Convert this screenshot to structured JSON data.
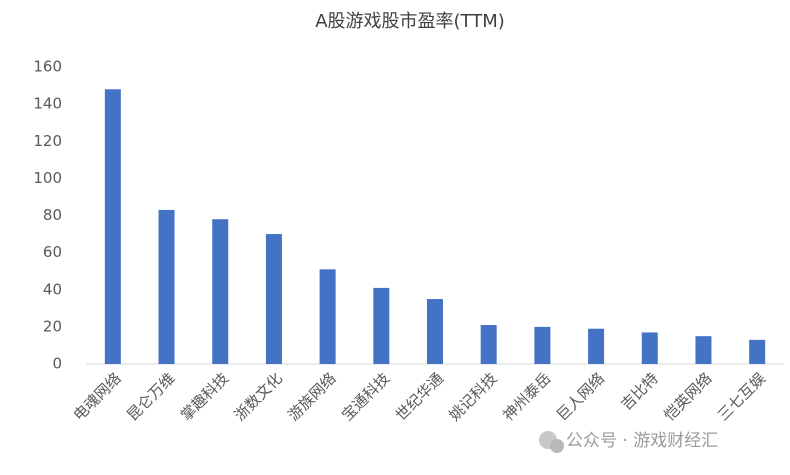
{
  "chart_data": {
    "type": "bar",
    "title": "A股游戏股市盈率(TTM)",
    "categories": [
      "电魂网络",
      "昆仑万维",
      "掌趣科技",
      "浙数文化",
      "游族网络",
      "宝通科技",
      "世纪华通",
      "姚记科技",
      "神州泰岳",
      "巨人网络",
      "吉比特",
      "恺英网络",
      "三七互娱"
    ],
    "values": [
      148,
      83,
      78,
      70,
      51,
      41,
      35,
      21,
      20,
      19,
      17,
      15,
      13
    ],
    "color": "#4472c4",
    "ylim": [
      0,
      160
    ],
    "yticks": [
      0,
      20,
      40,
      60,
      80,
      100,
      120,
      140,
      160
    ],
    "grid": false,
    "watermark": "公众号 · 游戏财经汇"
  }
}
